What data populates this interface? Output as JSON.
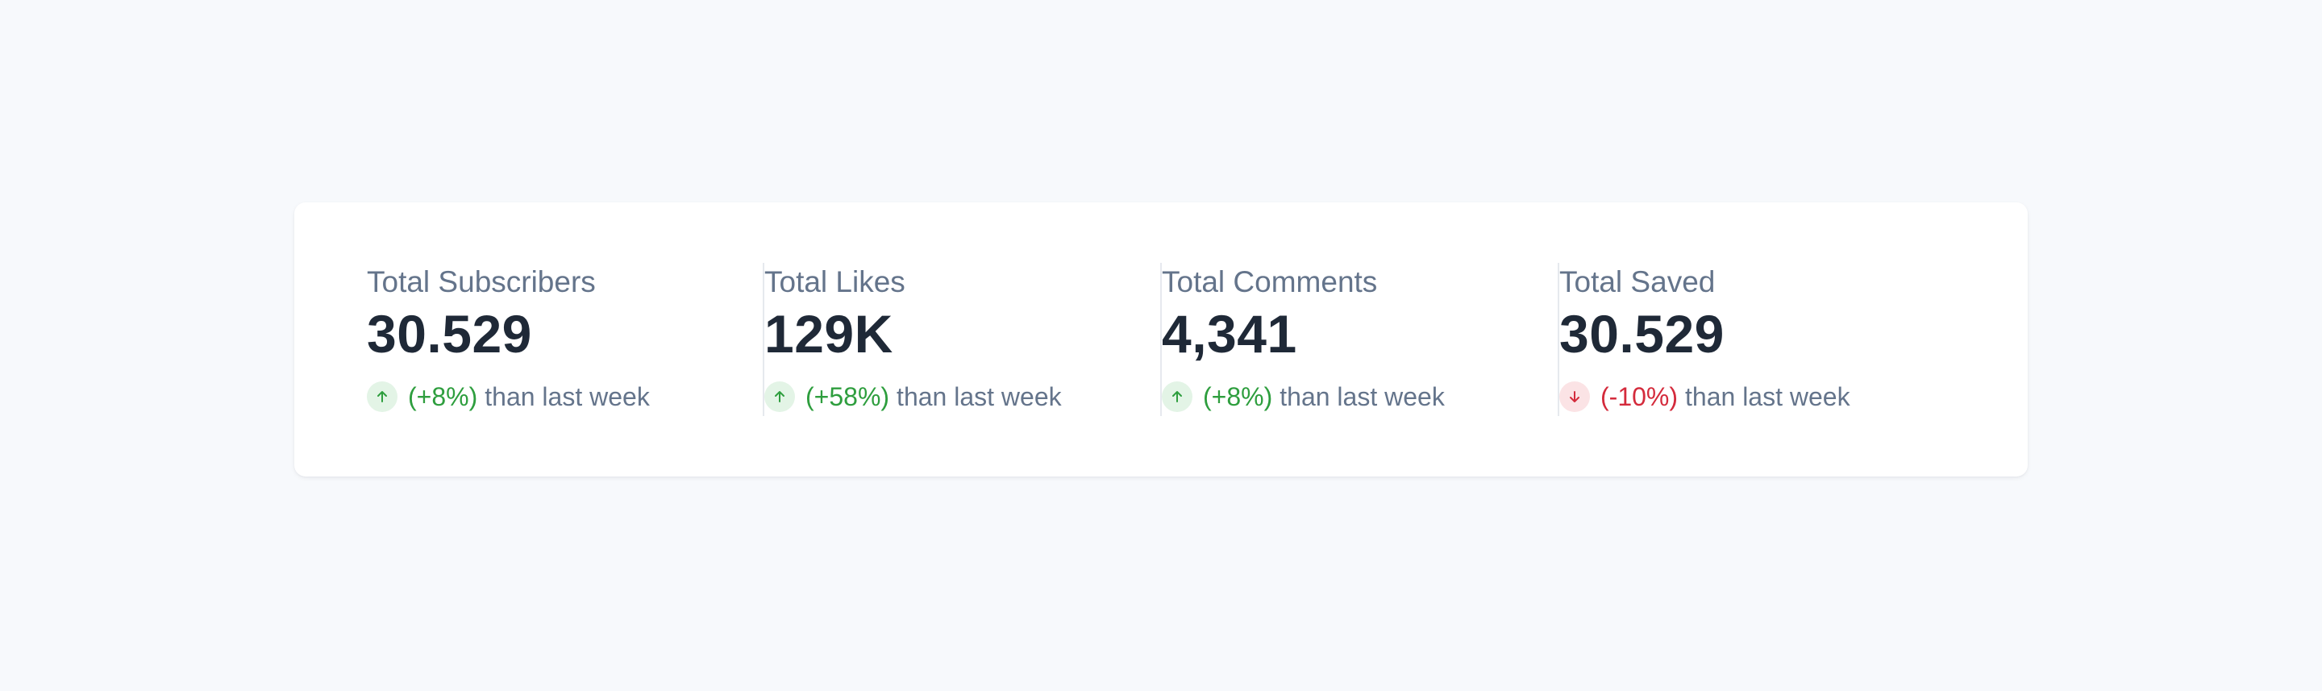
{
  "stats": [
    {
      "label": "Total Subscribers",
      "value": "30.529",
      "change": "(+8%)",
      "direction": "up",
      "icon": "arrow-up-icon",
      "suffix": "than last week"
    },
    {
      "label": "Total Likes",
      "value": "129K",
      "change": "(+58%)",
      "direction": "up",
      "icon": "arrow-up-icon",
      "suffix": "than last week"
    },
    {
      "label": "Total Comments",
      "value": "4,341",
      "change": "(+8%)",
      "direction": "up",
      "icon": "arrow-up-icon",
      "suffix": "than last week"
    },
    {
      "label": "Total Saved",
      "value": "30.529",
      "change": "(-10%)",
      "direction": "down",
      "icon": "arrow-down-icon",
      "suffix": "than last week"
    }
  ],
  "colors": {
    "background": "#f7f9fc",
    "card": "#ffffff",
    "label": "#64748b",
    "value": "#1f2937",
    "positive": "#2e9e3e",
    "positive_bg": "#e3f4e6",
    "negative": "#d42b3c",
    "negative_bg": "#fbe3e5"
  }
}
